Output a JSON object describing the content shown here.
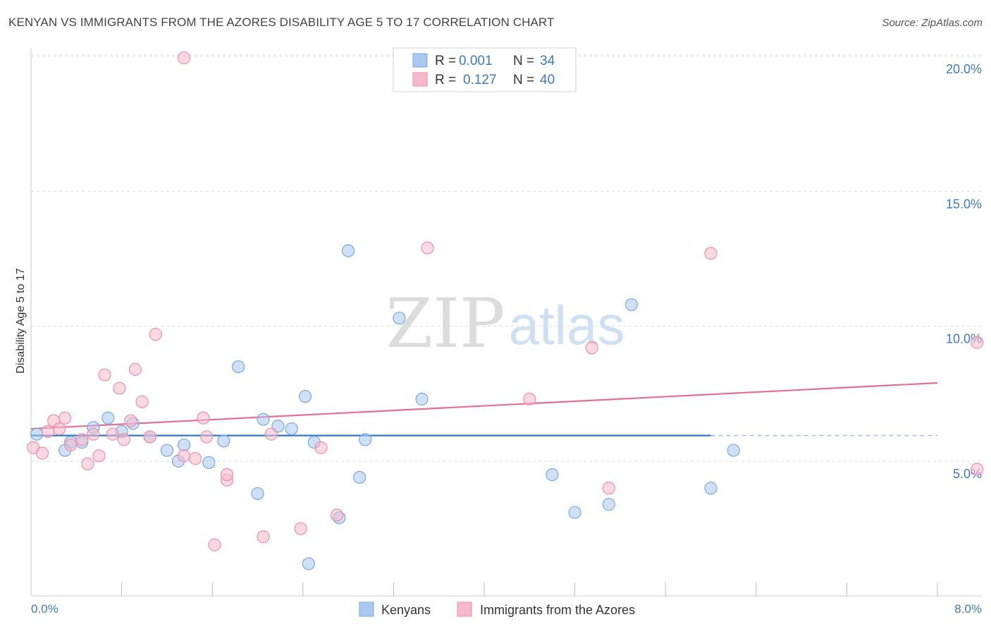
{
  "title": "KENYAN VS IMMIGRANTS FROM THE AZORES DISABILITY AGE 5 TO 17 CORRELATION CHART",
  "source": "Source: ZipAtlas.com",
  "watermark": {
    "zip": "ZIP",
    "atlas": "atlas"
  },
  "legend_stats": {
    "r_label": "R =",
    "n_label": "N =",
    "rows": [
      {
        "r": "0.001",
        "n": "34",
        "color": "#a9c8f0"
      },
      {
        "r": "0.127",
        "n": "40",
        "color": "#f6b9cb"
      }
    ]
  },
  "bottom_legend": [
    {
      "label": "Kenyans",
      "color": "#a9c8f0"
    },
    {
      "label": "Immigrants from the Azores",
      "color": "#f6b9cb"
    }
  ],
  "chart_data": {
    "type": "scatter",
    "title": "KENYAN VS IMMIGRANTS FROM THE AZORES DISABILITY AGE 5 TO 17 CORRELATION CHART",
    "xlabel": "",
    "ylabel": "Disability Age 5 to 17",
    "xlim": [
      0,
      8
    ],
    "ylim": [
      0,
      20.5
    ],
    "x_tick_labels": [
      "0.0%",
      "8.0%"
    ],
    "y_ticks": [
      5,
      10,
      15,
      20
    ],
    "y_tick_labels": [
      "5.0%",
      "10.0%",
      "15.0%",
      "20.0%"
    ],
    "grid": "horizontal dashed",
    "series": [
      {
        "name": "Kenyans",
        "color": "#a9c8f0",
        "stroke": "#7aa7e0",
        "trend": {
          "x": [
            0,
            6
          ],
          "y": [
            5.95,
            5.95
          ],
          "dashed_extension_to": 8,
          "color": "#2f78c9"
        },
        "points": [
          [
            0.05,
            6.0
          ],
          [
            0.35,
            5.7
          ],
          [
            0.3,
            5.4
          ],
          [
            0.45,
            5.7
          ],
          [
            0.55,
            6.25
          ],
          [
            0.68,
            6.6
          ],
          [
            0.8,
            6.1
          ],
          [
            0.9,
            6.4
          ],
          [
            1.05,
            5.9
          ],
          [
            1.2,
            5.4
          ],
          [
            1.3,
            5.0
          ],
          [
            1.35,
            5.6
          ],
          [
            1.57,
            4.95
          ],
          [
            1.7,
            5.75
          ],
          [
            1.83,
            8.5
          ],
          [
            2.0,
            3.8
          ],
          [
            2.05,
            6.55
          ],
          [
            2.18,
            6.3
          ],
          [
            2.3,
            6.2
          ],
          [
            2.42,
            7.4
          ],
          [
            2.5,
            5.7
          ],
          [
            2.45,
            1.2
          ],
          [
            2.8,
            12.8
          ],
          [
            2.9,
            4.4
          ],
          [
            2.95,
            5.8
          ],
          [
            3.25,
            10.3
          ],
          [
            3.45,
            7.3
          ],
          [
            4.6,
            4.5
          ],
          [
            4.8,
            3.1
          ],
          [
            5.1,
            3.4
          ],
          [
            5.3,
            10.8
          ],
          [
            6.0,
            4.0
          ],
          [
            6.2,
            5.4
          ],
          [
            2.72,
            2.9
          ]
        ]
      },
      {
        "name": "Immigrants from the Azores",
        "color": "#f6b9cb",
        "stroke": "#ee8eaa",
        "trend": {
          "x": [
            0,
            8
          ],
          "y": [
            6.2,
            7.9
          ],
          "color": "#e46f96"
        },
        "points": [
          [
            0.02,
            5.5
          ],
          [
            0.1,
            5.3
          ],
          [
            0.15,
            6.1
          ],
          [
            0.2,
            6.5
          ],
          [
            0.25,
            6.2
          ],
          [
            0.3,
            6.6
          ],
          [
            0.35,
            5.6
          ],
          [
            0.45,
            5.8
          ],
          [
            0.5,
            4.9
          ],
          [
            0.55,
            6.0
          ],
          [
            0.6,
            5.2
          ],
          [
            0.65,
            8.2
          ],
          [
            0.72,
            6.0
          ],
          [
            0.78,
            7.7
          ],
          [
            0.82,
            5.8
          ],
          [
            0.88,
            6.5
          ],
          [
            0.92,
            8.4
          ],
          [
            0.98,
            7.2
          ],
          [
            1.05,
            5.9
          ],
          [
            1.1,
            9.7
          ],
          [
            1.35,
            19.95
          ],
          [
            1.35,
            5.2
          ],
          [
            1.45,
            5.1
          ],
          [
            1.52,
            6.6
          ],
          [
            1.55,
            5.9
          ],
          [
            1.62,
            1.9
          ],
          [
            1.73,
            4.3
          ],
          [
            1.73,
            4.5
          ],
          [
            2.12,
            6.0
          ],
          [
            2.05,
            2.2
          ],
          [
            2.38,
            2.5
          ],
          [
            2.56,
            5.5
          ],
          [
            2.7,
            3.0
          ],
          [
            3.5,
            12.9
          ],
          [
            4.4,
            7.3
          ],
          [
            4.95,
            9.2
          ],
          [
            5.1,
            4.0
          ],
          [
            6.0,
            12.7
          ],
          [
            8.35,
            9.4
          ],
          [
            8.35,
            4.7
          ]
        ]
      }
    ]
  }
}
